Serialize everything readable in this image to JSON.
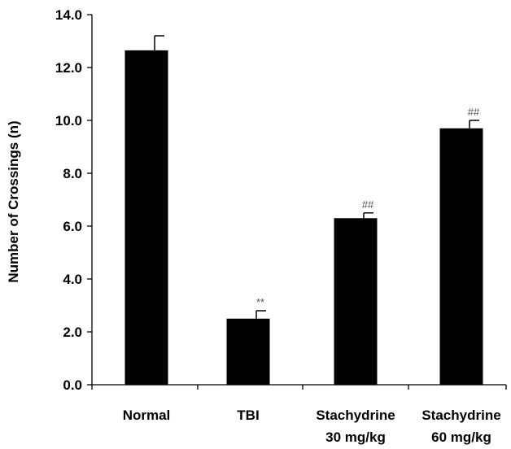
{
  "chart_data": {
    "type": "bar",
    "categories": [
      [
        "Normal"
      ],
      [
        "TBI"
      ],
      [
        "Stachydrine",
        "30 mg/kg"
      ],
      [
        "Stachydrine",
        "60 mg/kg"
      ]
    ],
    "values": [
      12.65,
      2.5,
      6.3,
      9.7
    ],
    "errors": [
      0.55,
      0.3,
      0.2,
      0.3
    ],
    "annotations": [
      "",
      "**",
      "##",
      "##"
    ],
    "ylabel": "Number of Crossings (n)",
    "ylim": [
      0,
      14
    ],
    "yticks": [
      "0.0",
      "2.0",
      "4.0",
      "6.0",
      "8.0",
      "10.0",
      "12.0",
      "14.0"
    ],
    "ytick_values": [
      0,
      2,
      4,
      6,
      8,
      10,
      12,
      14
    ],
    "grid": false,
    "colors": {
      "bar": "#000000",
      "axis": "#000000",
      "annotation": "#555555"
    }
  }
}
